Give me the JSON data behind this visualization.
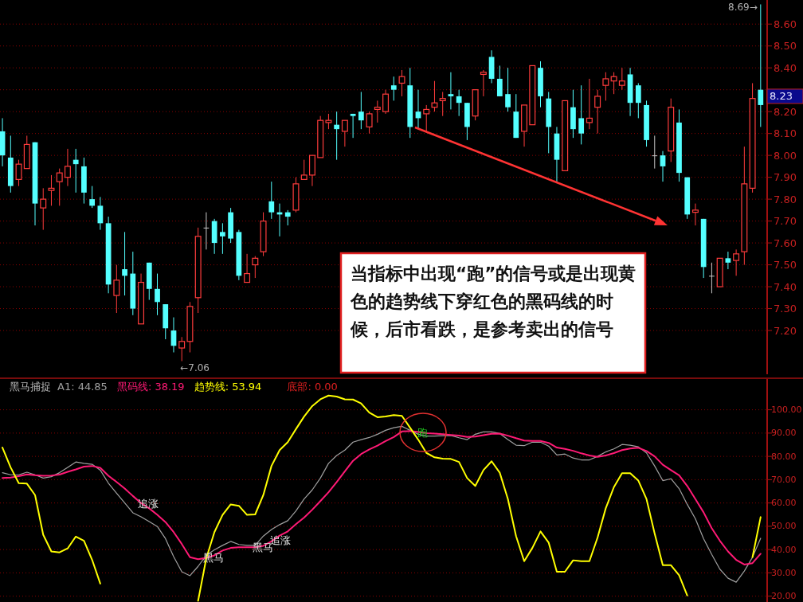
{
  "chart_data": [
    {
      "type": "candlestick",
      "categories": [
        null,
        null,
        null,
        null,
        null,
        null,
        null,
        null,
        null,
        null,
        null,
        null,
        null,
        null,
        null,
        null,
        null,
        null,
        null,
        null,
        null,
        null,
        null,
        null,
        null,
        null,
        null,
        null,
        null,
        null,
        null,
        null,
        null,
        null,
        null,
        null,
        null,
        null,
        null,
        null,
        null,
        null,
        null,
        null,
        null,
        null,
        null,
        null,
        null,
        null,
        null,
        null,
        null,
        null,
        null,
        null,
        null,
        null,
        null,
        null,
        null,
        null,
        null,
        null,
        null,
        null,
        null,
        null,
        null,
        null,
        null,
        null,
        null,
        null,
        null,
        null,
        null,
        null,
        null,
        null,
        null,
        null,
        null,
        null,
        null,
        null,
        null,
        null,
        null,
        null,
        null,
        null,
        null,
        null
      ],
      "ohlc": [
        [
          8.11,
          8.17,
          7.95,
          8.0
        ],
        [
          7.99,
          8.09,
          7.83,
          7.86
        ],
        [
          7.89,
          7.98,
          7.86,
          7.96
        ],
        [
          7.94,
          8.09,
          7.94,
          8.05
        ],
        [
          8.06,
          8.06,
          7.68,
          7.78
        ],
        [
          7.76,
          7.85,
          7.66,
          7.8
        ],
        [
          7.84,
          7.91,
          7.77,
          7.85
        ],
        [
          7.88,
          7.94,
          7.77,
          7.92
        ],
        [
          7.9,
          8.03,
          7.86,
          7.95
        ],
        [
          7.98,
          8.03,
          7.83,
          7.96
        ],
        [
          7.95,
          7.99,
          7.78,
          7.83
        ],
        [
          7.8,
          7.86,
          7.76,
          7.77
        ],
        [
          7.77,
          7.81,
          7.66,
          7.69
        ],
        [
          7.69,
          7.72,
          7.37,
          7.41
        ],
        [
          7.36,
          7.5,
          7.28,
          7.43
        ],
        [
          7.48,
          7.65,
          7.36,
          7.45
        ],
        [
          7.46,
          7.56,
          7.27,
          7.3
        ],
        [
          7.23,
          7.46,
          7.23,
          7.42
        ],
        [
          7.51,
          7.51,
          7.34,
          7.39
        ],
        [
          7.39,
          7.46,
          7.27,
          7.33
        ],
        [
          7.32,
          7.32,
          7.16,
          7.21
        ],
        [
          7.2,
          7.26,
          7.1,
          7.13
        ],
        [
          7.12,
          7.17,
          7.06,
          7.15
        ],
        [
          7.15,
          7.33,
          7.1,
          7.31
        ],
        [
          7.35,
          7.67,
          7.28,
          7.63
        ],
        [
          7.67,
          7.74,
          7.57,
          7.67
        ],
        [
          7.7,
          7.71,
          7.55,
          7.6
        ],
        [
          7.65,
          7.69,
          7.55,
          7.63
        ],
        [
          7.74,
          7.76,
          7.6,
          7.62
        ],
        [
          7.65,
          7.66,
          7.43,
          7.45
        ],
        [
          7.42,
          7.55,
          7.42,
          7.46
        ],
        [
          7.5,
          7.54,
          7.44,
          7.53
        ],
        [
          7.56,
          7.74,
          7.54,
          7.7
        ],
        [
          7.79,
          7.88,
          7.71,
          7.74
        ],
        [
          7.74,
          7.78,
          7.63,
          7.73
        ],
        [
          7.74,
          7.75,
          7.68,
          7.72
        ],
        [
          7.75,
          7.9,
          7.74,
          7.87
        ],
        [
          7.89,
          7.98,
          7.89,
          7.91
        ],
        [
          7.91,
          8.0,
          7.86,
          8.0
        ],
        [
          7.99,
          8.18,
          7.99,
          8.16
        ],
        [
          8.15,
          8.19,
          8.12,
          8.16
        ],
        [
          8.14,
          8.2,
          7.98,
          8.12
        ],
        [
          8.11,
          8.16,
          8.04,
          8.16
        ],
        [
          8.19,
          8.19,
          8.08,
          8.18
        ],
        [
          8.2,
          8.29,
          8.12,
          8.16
        ],
        [
          8.13,
          8.2,
          8.1,
          8.19
        ],
        [
          8.21,
          8.25,
          8.15,
          8.22
        ],
        [
          8.2,
          8.3,
          8.19,
          8.28
        ],
        [
          8.32,
          8.36,
          8.25,
          8.3
        ],
        [
          8.33,
          8.39,
          8.27,
          8.36
        ],
        [
          8.32,
          8.4,
          8.08,
          8.13
        ],
        [
          8.2,
          8.3,
          8.12,
          8.17
        ],
        [
          8.19,
          8.23,
          8.11,
          8.21
        ],
        [
          8.22,
          8.34,
          8.2,
          8.24
        ],
        [
          8.25,
          8.29,
          8.18,
          8.26
        ],
        [
          8.28,
          8.38,
          8.21,
          8.27
        ],
        [
          8.27,
          8.3,
          8.18,
          8.24
        ],
        [
          8.24,
          8.24,
          8.07,
          8.13
        ],
        [
          8.18,
          8.3,
          8.16,
          8.3
        ],
        [
          8.37,
          8.39,
          8.27,
          8.38
        ],
        [
          8.45,
          8.48,
          8.33,
          8.35
        ],
        [
          8.35,
          8.41,
          8.27,
          8.27
        ],
        [
          8.28,
          8.4,
          8.2,
          8.22
        ],
        [
          8.2,
          8.28,
          8.08,
          8.08
        ],
        [
          8.11,
          8.23,
          8.04,
          8.23
        ],
        [
          8.14,
          8.41,
          8.14,
          8.41
        ],
        [
          8.4,
          8.43,
          8.22,
          8.27
        ],
        [
          8.26,
          8.29,
          8.01,
          8.13
        ],
        [
          8.1,
          8.13,
          7.88,
          7.98
        ],
        [
          7.93,
          8.25,
          7.93,
          8.25
        ],
        [
          8.22,
          8.3,
          8.08,
          8.12
        ],
        [
          8.17,
          8.32,
          8.05,
          8.1
        ],
        [
          8.15,
          8.35,
          8.12,
          8.17
        ],
        [
          8.22,
          8.3,
          8.1,
          8.27
        ],
        [
          8.32,
          8.38,
          8.25,
          8.35
        ],
        [
          8.34,
          8.38,
          8.28,
          8.36
        ],
        [
          8.32,
          8.4,
          8.3,
          8.34
        ],
        [
          8.37,
          8.4,
          8.18,
          8.24
        ],
        [
          8.32,
          8.33,
          8.17,
          8.24
        ],
        [
          8.23,
          8.25,
          8.04,
          8.07
        ],
        [
          8.0,
          8.09,
          7.94,
          8.0
        ],
        [
          8.0,
          8.02,
          7.88,
          7.95
        ],
        [
          8.02,
          8.26,
          7.97,
          8.22
        ],
        [
          8.15,
          8.21,
          7.88,
          7.92
        ],
        [
          7.9,
          7.9,
          7.71,
          7.73
        ],
        [
          7.74,
          7.78,
          7.68,
          7.75
        ],
        [
          7.71,
          7.71,
          7.44,
          7.49
        ],
        [
          7.45,
          7.51,
          7.37,
          7.45
        ],
        [
          7.4,
          7.53,
          7.4,
          7.53
        ],
        [
          7.53,
          7.56,
          7.48,
          7.51
        ],
        [
          7.52,
          7.57,
          7.45,
          7.55
        ],
        [
          7.56,
          8.04,
          7.5,
          7.87
        ],
        [
          7.85,
          8.33,
          7.83,
          8.26
        ],
        [
          8.3,
          8.69,
          8.13,
          8.23
        ]
      ],
      "colors": [
        "#54ffff",
        "#54ffff",
        "#ff3c3c",
        "#ff3c3c",
        "#54ffff",
        "#ff3c3c",
        "#ff3c3c",
        "#ff3c3c",
        "#ff3c3c",
        "#54ffff",
        "#54ffff",
        "#54ffff",
        "#54ffff",
        "#54ffff",
        "#ff3c3c",
        "#54ffff",
        "#54ffff",
        "#ff3c3c",
        "#54ffff",
        "#54ffff",
        "#54ffff",
        "#54ffff",
        "#ff3c3c",
        "#ff3c3c",
        "#ff3c3c",
        "#c8c8c8",
        "#54ffff",
        "#54ffff",
        "#54ffff",
        "#54ffff",
        "#ff3c3c",
        "#ff3c3c",
        "#ff3c3c",
        "#54ffff",
        "#54ffff",
        "#54ffff",
        "#ff3c3c",
        "#ff3c3c",
        "#ff3c3c",
        "#ff3c3c",
        "#ff3c3c",
        "#54ffff",
        "#ff3c3c",
        "#54ffff",
        "#54ffff",
        "#ff3c3c",
        "#ff3c3c",
        "#ff3c3c",
        "#54ffff",
        "#ff3c3c",
        "#54ffff",
        "#54ffff",
        "#ff3c3c",
        "#ff3c3c",
        "#ff3c3c",
        "#54ffff",
        "#54ffff",
        "#54ffff",
        "#ff3c3c",
        "#ff3c3c",
        "#54ffff",
        "#54ffff",
        "#54ffff",
        "#54ffff",
        "#ff3c3c",
        "#ff3c3c",
        "#54ffff",
        "#54ffff",
        "#54ffff",
        "#ff3c3c",
        "#54ffff",
        "#54ffff",
        "#ff3c3c",
        "#ff3c3c",
        "#ff3c3c",
        "#ff3c3c",
        "#ff3c3c",
        "#54ffff",
        "#54ffff",
        "#54ffff",
        "#c8c8c8",
        "#54ffff",
        "#ff3c3c",
        "#54ffff",
        "#54ffff",
        "#ff3c3c",
        "#54ffff",
        "#c8c8c8",
        "#ff3c3c",
        "#54ffff",
        "#ff3c3c",
        "#ff3c3c",
        "#ff3c3c",
        "#54ffff"
      ],
      "ylim": [
        7.0,
        8.71
      ],
      "yticks": [
        {
          "value": 7.2,
          "label": "7.20"
        },
        {
          "value": 7.3,
          "label": "7.30"
        },
        {
          "value": 7.4,
          "label": "7.40"
        },
        {
          "value": 7.5,
          "label": "7.50"
        },
        {
          "value": 7.6,
          "label": "7.60"
        },
        {
          "value": 7.7,
          "label": "7.70"
        },
        {
          "value": 7.8,
          "label": "7.80"
        },
        {
          "value": 7.9,
          "label": "7.90"
        },
        {
          "value": 8.0,
          "label": "8.00"
        },
        {
          "value": 8.1,
          "label": "8.10"
        },
        {
          "value": 8.2,
          "label": "8.20"
        },
        {
          "value": 8.3,
          "label": null
        },
        {
          "value": 8.4,
          "label": "8.40"
        },
        {
          "value": 8.5,
          "label": "8.50"
        },
        {
          "value": 8.6,
          "label": "8.60"
        }
      ],
      "grid": "y",
      "annotations": [
        "8.69→",
        "←7.06",
        "8.23",
        "当指标中出现“跑”的信号或是出现黄色的趋势线下穿红色的黑码线的时候，后市看跌，是参考卖出的信号"
      ]
    },
    {
      "type": "line",
      "title": "黑马捕捉",
      "categories": [
        null,
        null,
        null,
        null,
        null,
        null,
        null,
        null,
        null,
        null,
        null,
        null,
        null,
        null,
        null,
        null,
        null,
        null,
        null,
        null,
        null,
        null,
        null,
        null,
        null,
        null,
        null,
        null,
        null,
        null,
        null,
        null,
        null,
        null,
        null,
        null,
        null,
        null,
        null,
        null,
        null,
        null,
        null,
        null,
        null,
        null,
        null,
        null,
        null,
        null,
        null,
        null,
        null,
        null,
        null,
        null,
        null,
        null,
        null,
        null,
        null,
        null,
        null,
        null,
        null,
        null,
        null,
        null,
        null,
        null,
        null,
        null,
        null,
        null,
        null,
        null,
        null,
        null,
        null,
        null,
        null,
        null,
        null,
        null,
        null,
        null,
        null,
        null,
        null,
        null,
        null,
        null,
        null,
        null
      ],
      "series": [
        {
          "name": "A1: 44.85",
          "color": "#a0a0a0",
          "values": [
            73.0,
            72.1,
            72.1,
            73.2,
            72.1,
            70.7,
            71.3,
            73.0,
            75.3,
            77.6,
            77.0,
            76.6,
            74.1,
            68.5,
            64.2,
            60.0,
            55.8,
            54.1,
            52.0,
            49.9,
            44.7,
            37.0,
            30.5,
            28.8,
            32.8,
            37.6,
            39.9,
            41.8,
            43.5,
            42.2,
            41.8,
            41.8,
            45.8,
            48.6,
            50.7,
            52.4,
            56.6,
            61.7,
            65.6,
            70.7,
            77.0,
            80.4,
            82.7,
            86.1,
            87.2,
            88.1,
            89.5,
            91.2,
            92.3,
            92.9,
            91.2,
            89.5,
            88.7,
            88.7,
            88.9,
            89.0,
            88.0,
            87.2,
            89.5,
            90.5,
            90.5,
            89.8,
            87.2,
            84.8,
            84.6,
            86.1,
            86.1,
            84.4,
            80.6,
            81.0,
            79.3,
            78.5,
            78.5,
            80.0,
            81.9,
            83.2,
            85.1,
            84.8,
            84.1,
            81.5,
            75.9,
            69.6,
            70.4,
            66.2,
            59.4,
            53.2,
            44.7,
            37.9,
            31.6,
            27.7,
            26.0,
            30.8,
            36.7,
            44.85
          ]
        },
        {
          "name": "黑码线: 38.19",
          "color": "#ff1a75",
          "values": [
            70.7,
            70.9,
            71.5,
            72.3,
            71.9,
            71.7,
            71.8,
            72.2,
            73.4,
            74.4,
            75.6,
            75.9,
            75.1,
            71.7,
            69.0,
            66.2,
            63.0,
            60.0,
            57.7,
            54.9,
            51.8,
            47.5,
            42.4,
            36.7,
            35.9,
            36.4,
            37.5,
            39.6,
            40.7,
            41.0,
            41.0,
            41.0,
            41.6,
            43.5,
            46.0,
            47.8,
            50.9,
            53.7,
            57.1,
            60.8,
            64.6,
            69.0,
            73.6,
            78.1,
            81.0,
            83.0,
            84.6,
            86.6,
            88.3,
            90.7,
            90.9,
            90.5,
            90.0,
            89.8,
            89.5,
            89.2,
            88.9,
            88.3,
            88.5,
            89.1,
            89.7,
            89.8,
            88.9,
            87.8,
            86.8,
            86.6,
            86.6,
            85.8,
            83.8,
            83.2,
            82.4,
            81.3,
            80.4,
            79.8,
            80.4,
            81.4,
            82.7,
            83.4,
            83.7,
            82.3,
            80.0,
            76.4,
            74.1,
            71.9,
            67.3,
            61.7,
            56.0,
            49.2,
            43.8,
            39.2,
            35.6,
            33.6,
            34.2,
            38.19
          ]
        },
        {
          "name": "趋势线: 53.94",
          "color": "#ffff00",
          "values": [
            83.8,
            75.3,
            68.5,
            68.3,
            63.4,
            46.4,
            39.2,
            38.8,
            40.5,
            45.6,
            43.8,
            35.6,
            25.4,
            null,
            null,
            null,
            null,
            null,
            null,
            null,
            null,
            null,
            null,
            null,
            18.0,
            36.2,
            47.5,
            54.9,
            59.4,
            58.8,
            54.9,
            55.1,
            63.4,
            75.9,
            82.7,
            86.1,
            91.7,
            97.1,
            101.6,
            104.5,
            106.1,
            105.7,
            104.5,
            104.4,
            102.7,
            98.8,
            96.8,
            97.1,
            97.7,
            97.4,
            92.3,
            87.2,
            81.5,
            79.6,
            79.0,
            78.9,
            77.6,
            70.7,
            67.3,
            74.1,
            77.9,
            73.0,
            61.7,
            45.8,
            35.0,
            40.7,
            47.8,
            43.0,
            30.5,
            30.5,
            35.4,
            35.0,
            35.0,
            45.2,
            57.7,
            66.8,
            72.8,
            72.8,
            69.6,
            61.7,
            46.9,
            33.3,
            33.3,
            29.0,
            20.3,
            null,
            null,
            null,
            null,
            null,
            null,
            null,
            36.7,
            53.94
          ]
        }
      ],
      "ylim": [
        17.5,
        113.2
      ],
      "yticks": [
        {
          "value": 20,
          "label": "20.00"
        },
        {
          "value": 30,
          "label": "30.00"
        },
        {
          "value": 40,
          "label": "40.00"
        },
        {
          "value": 50,
          "label": "50.00"
        },
        {
          "value": 60,
          "label": "60.00"
        },
        {
          "value": 70,
          "label": "70.00"
        },
        {
          "value": 80,
          "label": "80.00"
        },
        {
          "value": 90,
          "label": "90.00"
        },
        {
          "value": 100,
          "label": "100.00"
        }
      ],
      "grid": "y",
      "legend": "top left",
      "annotations": [
        "追涨",
        "黑马",
        "黑马",
        "追涨",
        "跑",
        "底部: 0.00"
      ]
    }
  ]
}
